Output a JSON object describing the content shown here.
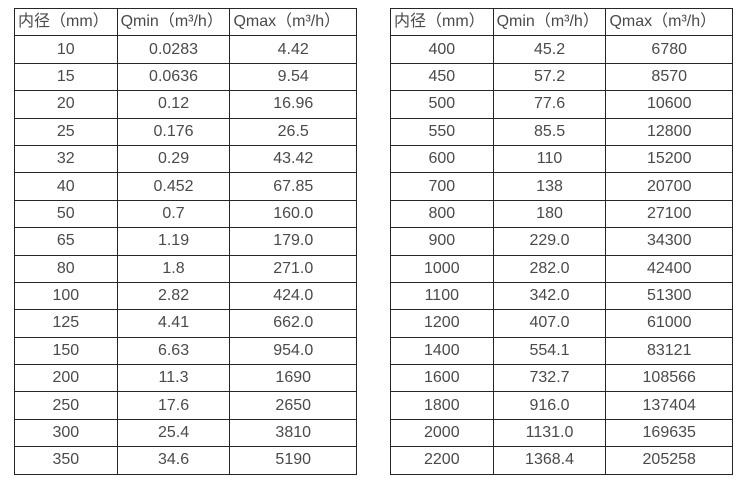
{
  "colors": {
    "border": "#262626",
    "text": "#4a4a4a",
    "background": "#ffffff"
  },
  "tables": [
    {
      "name": "small-diameter-flow-rates",
      "headers": [
        "内径（mm）",
        "Qmin（m³/h）",
        "Qmax（m³/h）"
      ],
      "rows": [
        [
          "10",
          "0.0283",
          "4.42"
        ],
        [
          "15",
          "0.0636",
          "9.54"
        ],
        [
          "20",
          "0.12",
          "16.96"
        ],
        [
          "25",
          "0.176",
          "26.5"
        ],
        [
          "32",
          "0.29",
          "43.42"
        ],
        [
          "40",
          "0.452",
          "67.85"
        ],
        [
          "50",
          "0.7",
          "160.0"
        ],
        [
          "65",
          "1.19",
          "179.0"
        ],
        [
          "80",
          "1.8",
          "271.0"
        ],
        [
          "100",
          "2.82",
          "424.0"
        ],
        [
          "125",
          "4.41",
          "662.0"
        ],
        [
          "150",
          "6.63",
          "954.0"
        ],
        [
          "200",
          "11.3",
          "1690"
        ],
        [
          "250",
          "17.6",
          "2650"
        ],
        [
          "300",
          "25.4",
          "3810"
        ],
        [
          "350",
          "34.6",
          "5190"
        ]
      ]
    },
    {
      "name": "large-diameter-flow-rates",
      "headers": [
        "内径（mm）",
        "Qmin（m³/h）",
        "Qmax（m³/h）"
      ],
      "rows": [
        [
          "400",
          "45.2",
          "6780"
        ],
        [
          "450",
          "57.2",
          "8570"
        ],
        [
          "500",
          "77.6",
          "10600"
        ],
        [
          "550",
          "85.5",
          "12800"
        ],
        [
          "600",
          "110",
          "15200"
        ],
        [
          "700",
          "138",
          "20700"
        ],
        [
          "800",
          "180",
          "27100"
        ],
        [
          "900",
          "229.0",
          "34300"
        ],
        [
          "1000",
          "282.0",
          "42400"
        ],
        [
          "1100",
          "342.0",
          "51300"
        ],
        [
          "1200",
          "407.0",
          "61000"
        ],
        [
          "1400",
          "554.1",
          "83121"
        ],
        [
          "1600",
          "732.7",
          "108566"
        ],
        [
          "1800",
          "916.0",
          "137404"
        ],
        [
          "2000",
          "1131.0",
          "169635"
        ],
        [
          "2200",
          "1368.4",
          "205258"
        ]
      ]
    }
  ]
}
